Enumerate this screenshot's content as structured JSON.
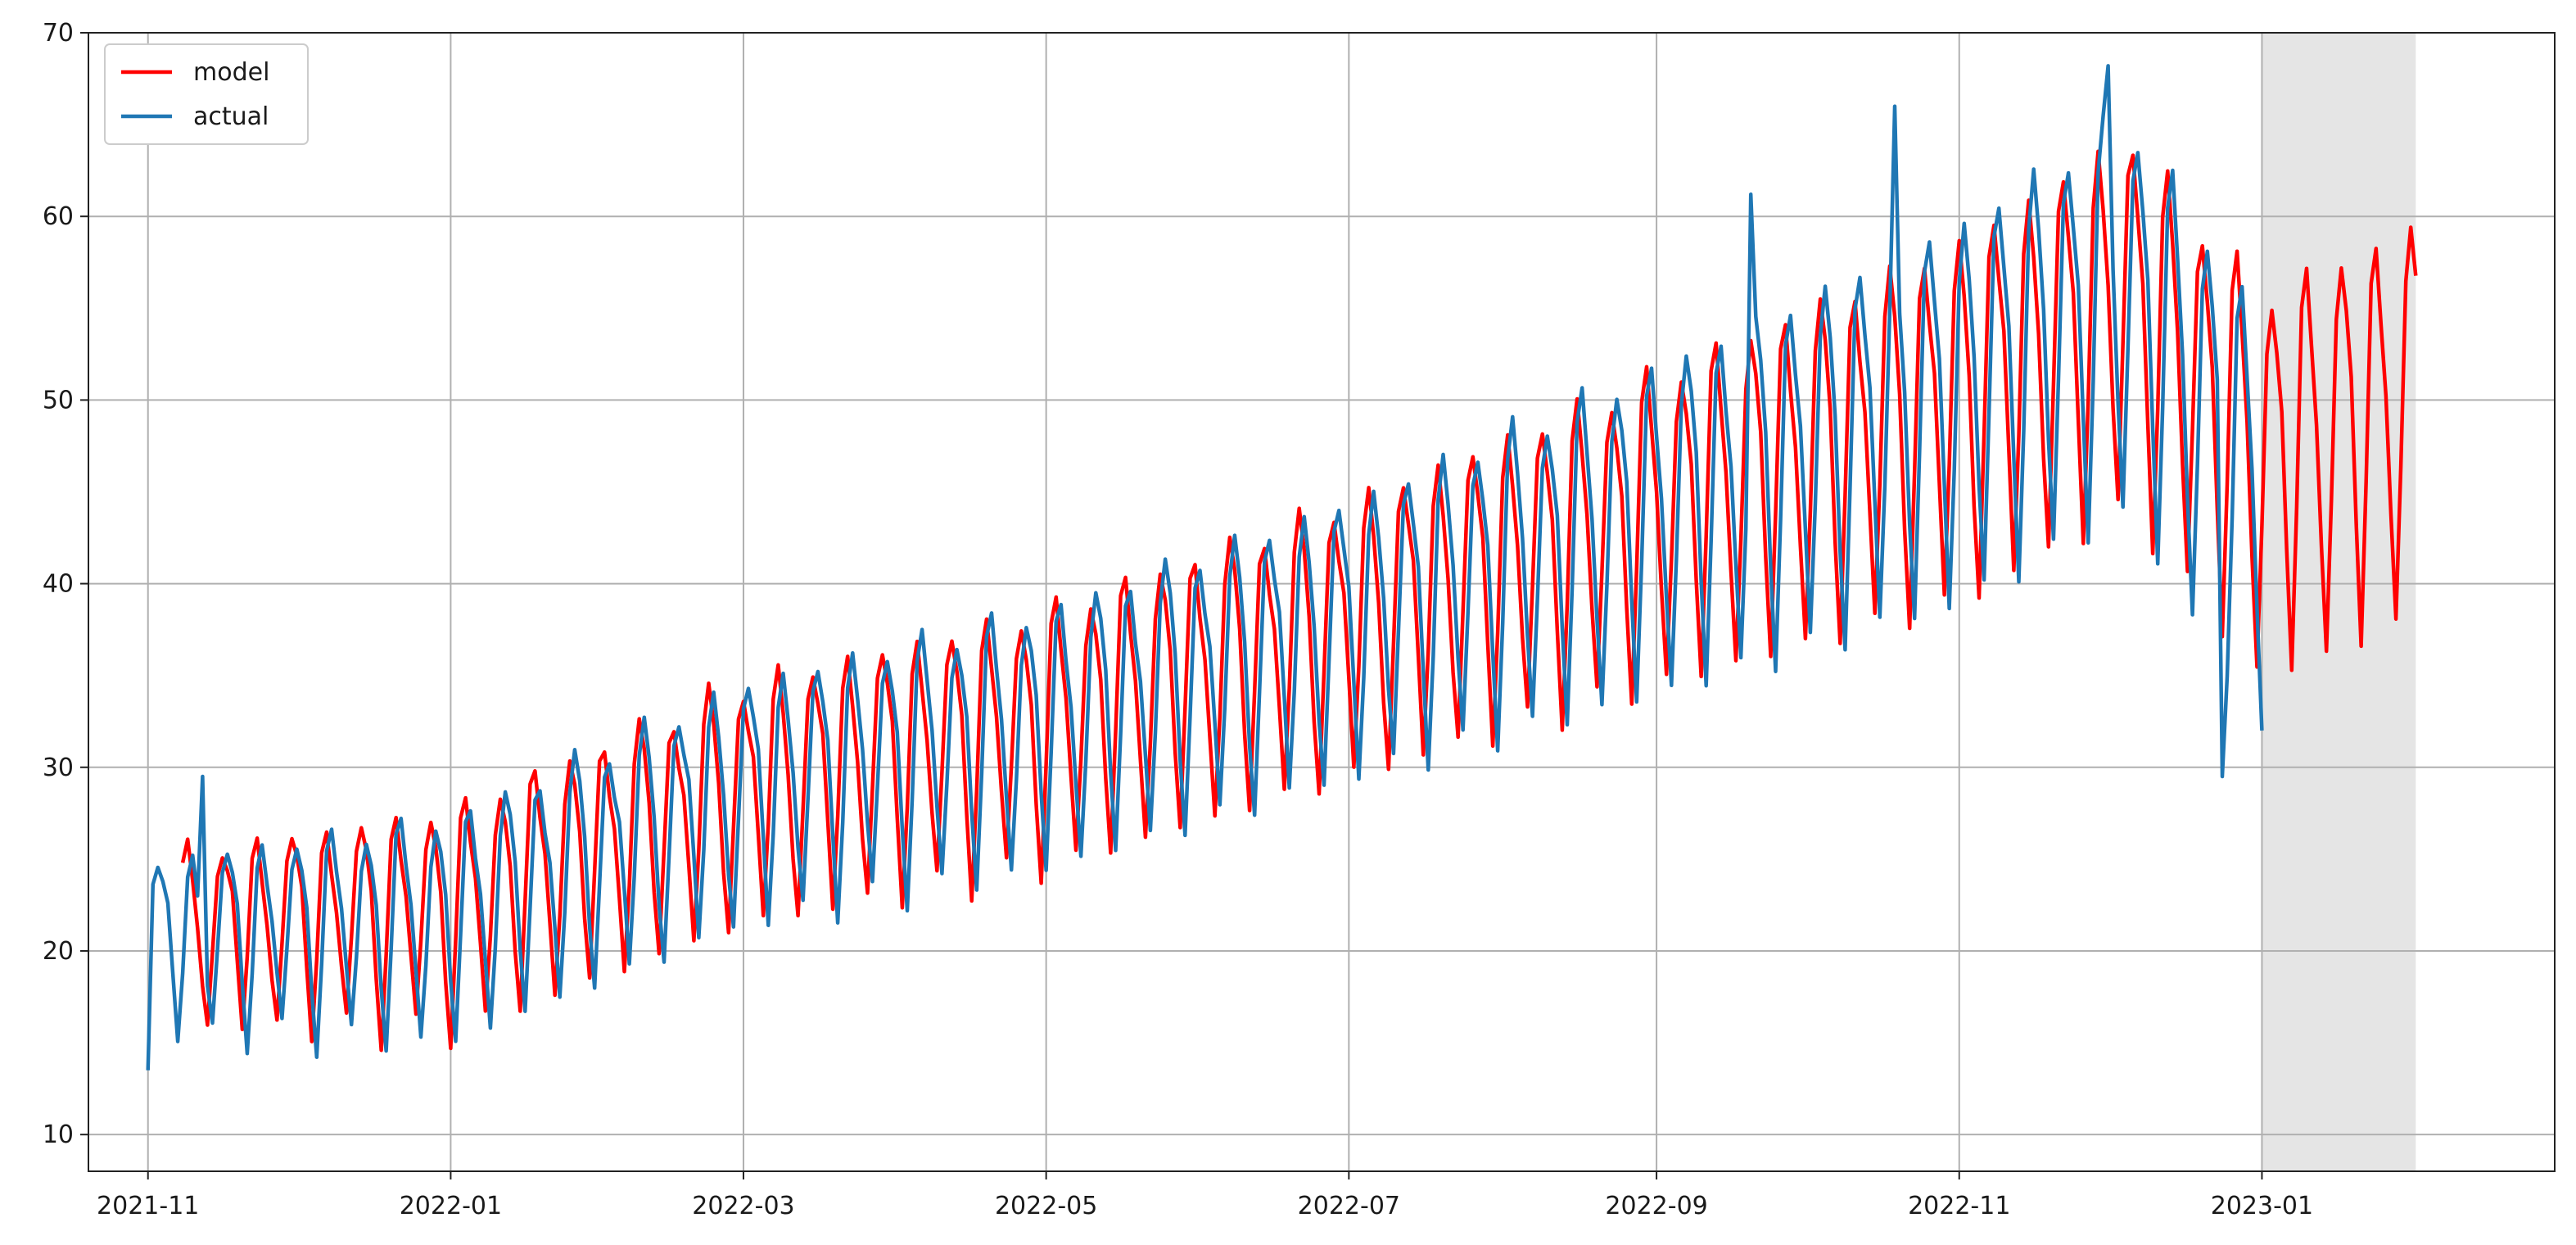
{
  "chart_data": {
    "type": "line",
    "x_start": "2021-11-01",
    "x_end": "2023-02-01",
    "xlim": [
      "2021-10-20",
      "2023-03-01"
    ],
    "ylim": [
      8,
      70
    ],
    "x_ticks": [
      "2021-11",
      "2022-01",
      "2022-03",
      "2022-05",
      "2022-07",
      "2022-09",
      "2022-11",
      "2023-01"
    ],
    "y_ticks": [
      10,
      20,
      30,
      40,
      50,
      60,
      70
    ],
    "grid": true,
    "legend": "top-left",
    "forecast_region": [
      "2023-01-01",
      "2023-02-01"
    ],
    "series": [
      {
        "name": "model",
        "color": "#ff0000",
        "period_start": "2021-11-08",
        "period_end": "2023-02-01",
        "trend_points": [
          [
            "2021-11-08",
            21.0
          ],
          [
            "2022-01-01",
            22.0
          ],
          [
            "2022-03-01",
            28.5
          ],
          [
            "2022-05-01",
            32.0
          ],
          [
            "2022-07-01",
            37.5
          ],
          [
            "2022-09-01",
            43.5
          ],
          [
            "2022-11-01",
            49.5
          ],
          [
            "2022-12-05",
            55.0
          ],
          [
            "2023-01-01",
            46.0
          ],
          [
            "2023-02-01",
            49.5
          ]
        ],
        "amplitude_points": [
          [
            "2021-11-08",
            5.0
          ],
          [
            "2022-01-01",
            6.5
          ],
          [
            "2022-03-01",
            7.0
          ],
          [
            "2022-07-01",
            8.0
          ],
          [
            "2022-09-01",
            9.0
          ],
          [
            "2022-11-01",
            10.5
          ],
          [
            "2023-02-01",
            11.5
          ]
        ]
      },
      {
        "name": "actual",
        "color": "#1f77b4",
        "period_start": "2021-11-01",
        "period_end": "2023-01-01",
        "trend_points": [
          [
            "2021-11-01",
            20.5
          ],
          [
            "2022-01-01",
            21.5
          ],
          [
            "2022-03-01",
            28.5
          ],
          [
            "2022-05-01",
            32.0
          ],
          [
            "2022-07-01",
            37.5
          ],
          [
            "2022-09-01",
            43.5
          ],
          [
            "2022-11-01",
            50.0
          ],
          [
            "2022-12-05",
            55.5
          ],
          [
            "2023-01-01",
            44.0
          ]
        ],
        "amplitude_points": [
          [
            "2021-11-01",
            5.0
          ],
          [
            "2022-01-01",
            6.5
          ],
          [
            "2022-03-01",
            7.0
          ],
          [
            "2022-07-01",
            8.0
          ],
          [
            "2022-09-01",
            9.5
          ],
          [
            "2022-11-01",
            11.0
          ],
          [
            "2023-01-01",
            12.0
          ]
        ],
        "extremes": [
          [
            "2021-11-01",
            13.5
          ],
          [
            "2021-11-12",
            29.5
          ],
          [
            "2022-09-20",
            61.2
          ],
          [
            "2022-10-19",
            66.0
          ],
          [
            "2022-12-01",
            68.2
          ],
          [
            "2022-12-24",
            29.5
          ],
          [
            "2023-01-01",
            32.0
          ]
        ]
      }
    ]
  }
}
